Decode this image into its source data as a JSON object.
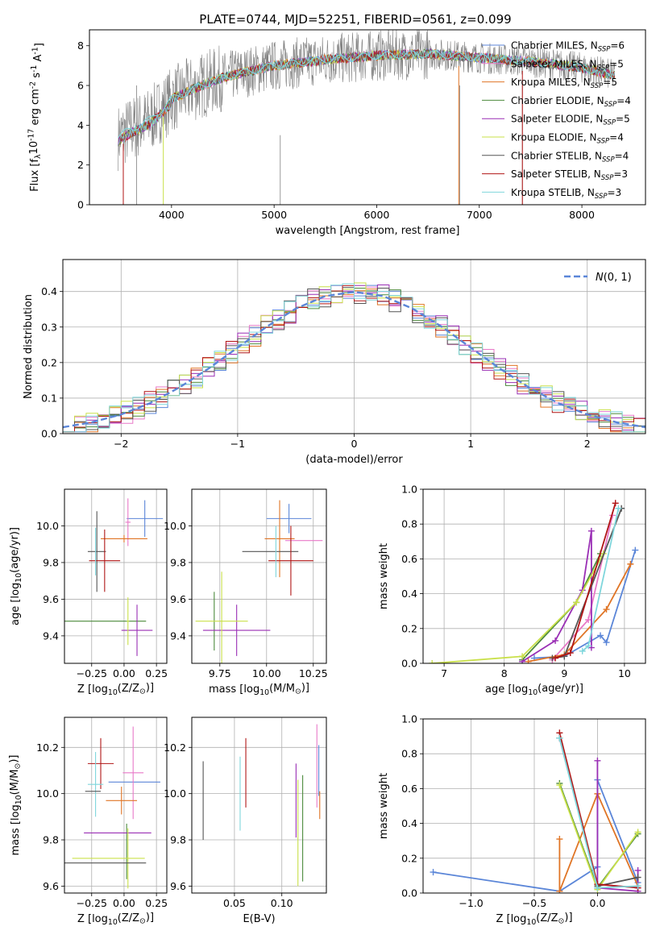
{
  "figure_title": "PLATE=0744, MJD=52251, FIBERID=0561, z=0.099",
  "colors": {
    "Chabrier MILES": "#5b86d8",
    "Salpeter MILES": "#e879c8",
    "Kroupa MILES": "#e07526",
    "Chabrier ELODIE": "#4c8a3c",
    "Salpeter ELODIE": "#9a2fb5",
    "Kroupa ELODIE": "#c9e04a",
    "Chabrier STELIB": "#555555",
    "Salpeter STELIB": "#b01515",
    "Kroupa STELIB": "#7fd6dc",
    "data": "#808080",
    "gauss": "#5b86d8",
    "grid": "#b0b0b0"
  },
  "chart_data": [
    {
      "id": "spectrum",
      "type": "line",
      "title": "PLATE=0744, MJD=52251, FIBERID=0561, z=0.099",
      "xlabel": "wavelength [Angstrom, rest frame]",
      "ylabel": "Flux [f$_\\lambda$10$^{-17}$ erg cm$^{-2}$ s$^{-1}$ A$^{-1}$]",
      "xlim": [
        3200,
        8620
      ],
      "ylim": [
        0,
        8.8
      ],
      "xticks": [
        4000,
        5000,
        6000,
        7000,
        8000
      ],
      "yticks": [
        0,
        2,
        4,
        6,
        8
      ],
      "grid": false,
      "legend": [
        {
          "name": "Chabrier MILES",
          "n": "6"
        },
        {
          "name": "Salpeter MILES",
          "n": "5"
        },
        {
          "name": "Kroupa MILES",
          "n": "5"
        },
        {
          "name": "Chabrier ELODIE",
          "n": "4"
        },
        {
          "name": "Salpeter ELODIE",
          "n": "5"
        },
        {
          "name": "Kroupa ELODIE",
          "n": "4"
        },
        {
          "name": "Chabrier STELIB",
          "n": "4"
        },
        {
          "name": "Salpeter STELIB",
          "n": "3"
        },
        {
          "name": "Kroupa STELIB",
          "n": "3"
        }
      ],
      "continuum": {
        "x": [
          3480,
          3600,
          3800,
          4000,
          4200,
          4500,
          5000,
          5500,
          6000,
          6500,
          7000,
          7500,
          8000,
          8320
        ],
        "y": [
          3.4,
          3.8,
          4.3,
          5.3,
          5.8,
          6.4,
          7.0,
          7.3,
          7.5,
          7.6,
          7.4,
          7.2,
          6.9,
          6.5
        ]
      }
    },
    {
      "id": "residuals",
      "type": "line",
      "xlabel": "(data-model)/error",
      "ylabel": "Normed distribution",
      "xlim": [
        -2.5,
        2.5
      ],
      "ylim": [
        0,
        0.49
      ],
      "xticks": [
        -2,
        -1,
        0,
        1,
        2
      ],
      "yticks": [
        0.0,
        0.1,
        0.2,
        0.3,
        0.4
      ],
      "grid": true,
      "legend": [
        {
          "name": "N(0,1)"
        }
      ],
      "bin_centers": [
        -2.45,
        -2.35,
        -2.25,
        -2.15,
        -2.05,
        -1.95,
        -1.85,
        -1.75,
        -1.65,
        -1.55,
        -1.45,
        -1.35,
        -1.25,
        -1.15,
        -1.05,
        -0.95,
        -0.85,
        -0.75,
        -0.65,
        -0.55,
        -0.45,
        -0.35,
        -0.25,
        -0.15,
        -0.05,
        0.05,
        0.15,
        0.25,
        0.35,
        0.45,
        0.55,
        0.65,
        0.75,
        0.85,
        0.95,
        1.05,
        1.15,
        1.25,
        1.35,
        1.45,
        1.55,
        1.65,
        1.75,
        1.85,
        1.95,
        2.05,
        2.15,
        2.25,
        2.35,
        2.45
      ],
      "gauss_x": [
        -2.5,
        -2.25,
        -2.0,
        -1.75,
        -1.5,
        -1.25,
        -1.0,
        -0.75,
        -0.5,
        -0.25,
        0.0,
        0.25,
        0.5,
        0.75,
        1.0,
        1.25,
        1.5,
        1.75,
        2.0,
        2.25,
        2.5
      ],
      "gauss_y": [
        0.018,
        0.032,
        0.054,
        0.086,
        0.13,
        0.183,
        0.242,
        0.301,
        0.352,
        0.387,
        0.399,
        0.387,
        0.352,
        0.301,
        0.242,
        0.183,
        0.13,
        0.086,
        0.054,
        0.032,
        0.018
      ]
    },
    {
      "id": "age_vs_Z",
      "type": "scatter",
      "xlabel": "Z [log$_{10}$(Z/Z$_\\odot$)]",
      "ylabel": "age  [log$_{10}$(age/yr)]",
      "xlim": [
        -0.46,
        0.33
      ],
      "ylim": [
        9.25,
        10.2
      ],
      "xticks": [
        -0.25,
        0.0,
        0.25
      ],
      "xticklabels": [
        "−0.25",
        "0.00",
        "0.25"
      ],
      "yticks": [
        9.4,
        9.6,
        9.8,
        10.0
      ],
      "grid": true,
      "points": [
        {
          "s": "Chabrier MILES",
          "x": 0.16,
          "y": 10.04,
          "xe": 0.14,
          "ye": 0.1
        },
        {
          "s": "Salpeter MILES",
          "x": 0.03,
          "y": 10.02,
          "xe": 0.02,
          "ye": 0.13
        },
        {
          "s": "Kroupa MILES",
          "x": 0.0,
          "y": 9.93,
          "xe": 0.18,
          "ye": 0.02
        },
        {
          "s": "Chabrier ELODIE",
          "x": -0.17,
          "y": 9.48,
          "xe": 0.34,
          "ye": 0.0
        },
        {
          "s": "Salpeter ELODIE",
          "x": 0.1,
          "y": 9.43,
          "xe": 0.12,
          "ye": 0.14
        },
        {
          "s": "Kroupa ELODIE",
          "x": 0.03,
          "y": 9.48,
          "xe": 0.01,
          "ye": 0.13
        },
        {
          "s": "Chabrier STELIB",
          "x": -0.21,
          "y": 9.86,
          "xe": 0.07,
          "ye": 0.22
        },
        {
          "s": "Salpeter STELIB",
          "x": -0.15,
          "y": 9.81,
          "xe": 0.12,
          "ye": 0.17
        },
        {
          "s": "Kroupa STELIB",
          "x": -0.22,
          "y": 9.86,
          "xe": 0.0,
          "ye": 0.13
        }
      ]
    },
    {
      "id": "age_vs_mass",
      "type": "scatter",
      "xlabel": "mass [log$_{10}$(M/M$_\\odot$)]",
      "ylabel": "",
      "xlim": [
        9.6,
        10.32
      ],
      "ylim": [
        9.25,
        10.2
      ],
      "xticks": [
        9.75,
        10.0,
        10.25
      ],
      "xticklabels": [
        "9.75",
        "10.00",
        "10.25"
      ],
      "yticks": [
        9.4,
        9.6,
        9.8,
        10.0
      ],
      "grid": true,
      "points": [
        {
          "s": "Chabrier MILES",
          "x": 10.12,
          "y": 10.04,
          "xe": 0.12,
          "ye": 0.08
        },
        {
          "s": "Salpeter MILES",
          "x": 10.2,
          "y": 9.92,
          "xe": 0.1,
          "ye": 0.0
        },
        {
          "s": "Kroupa MILES",
          "x": 10.07,
          "y": 9.93,
          "xe": 0.08,
          "ye": 0.21
        },
        {
          "s": "Chabrier ELODIE",
          "x": 9.72,
          "y": 9.48,
          "xe": 0.0,
          "ye": 0.16
        },
        {
          "s": "Salpeter ELODIE",
          "x": 9.84,
          "y": 9.43,
          "xe": 0.18,
          "ye": 0.14
        },
        {
          "s": "Kroupa ELODIE",
          "x": 9.76,
          "y": 9.48,
          "xe": 0.14,
          "ye": 0.27
        },
        {
          "s": "Chabrier STELIB",
          "x": 10.02,
          "y": 9.86,
          "xe": 0.15,
          "ye": 0.0
        },
        {
          "s": "Salpeter STELIB",
          "x": 10.13,
          "y": 9.81,
          "xe": 0.12,
          "ye": 0.19
        },
        {
          "s": "Kroupa STELIB",
          "x": 10.05,
          "y": 9.86,
          "xe": 0.0,
          "ye": 0.14
        }
      ]
    },
    {
      "id": "weight_vs_age",
      "type": "line",
      "xlabel": "age  [log$_{10}$(age/yr)]",
      "ylabel": "mass weight",
      "xlim": [
        6.65,
        10.35
      ],
      "ylim": [
        0,
        1.0
      ],
      "xticks": [
        7,
        8,
        9,
        10
      ],
      "yticks": [
        0.0,
        0.2,
        0.4,
        0.6,
        0.8,
        1.0
      ],
      "grid": true,
      "series": [
        {
          "s": "Chabrier MILES",
          "x": [
            8.5,
            9.0,
            9.6,
            9.7,
            10.18
          ],
          "y": [
            0.03,
            0.04,
            0.16,
            0.12,
            0.65
          ]
        },
        {
          "s": "Salpeter MILES",
          "x": [
            8.8,
            9.4,
            9.8
          ],
          "y": [
            0.02,
            0.25,
            0.85
          ]
        },
        {
          "s": "Kroupa MILES",
          "x": [
            8.4,
            9.0,
            9.7,
            10.1
          ],
          "y": [
            0.01,
            0.05,
            0.31,
            0.57
          ]
        },
        {
          "s": "Chabrier ELODIE",
          "x": [
            8.3,
            9.2,
            9.6
          ],
          "y": [
            0.02,
            0.35,
            0.63
          ]
        },
        {
          "s": "Salpeter ELODIE",
          "x": [
            8.3,
            8.85,
            9.3,
            9.45,
            9.45
          ],
          "y": [
            0.01,
            0.13,
            0.42,
            0.76,
            0.09
          ]
        },
        {
          "s": "Kroupa ELODIE",
          "x": [
            6.8,
            8.3,
            9.2,
            9.65
          ],
          "y": [
            0.0,
            0.04,
            0.35,
            0.63
          ]
        },
        {
          "s": "Chabrier STELIB",
          "x": [
            8.8,
            9.0,
            9.95
          ],
          "y": [
            0.03,
            0.04,
            0.89
          ]
        },
        {
          "s": "Salpeter STELIB",
          "x": [
            8.85,
            9.1,
            9.85
          ],
          "y": [
            0.03,
            0.06,
            0.92
          ]
        },
        {
          "s": "Kroupa STELIB",
          "x": [
            9.3,
            9.4,
            9.9
          ],
          "y": [
            0.07,
            0.1,
            0.89
          ]
        }
      ]
    },
    {
      "id": "mass_vs_Z",
      "type": "scatter",
      "xlabel": "Z [log$_{10}$(Z/Z$_\\odot$)]",
      "ylabel": "mass [log$_{10}$(M/M$_\\odot$)]",
      "xlim": [
        -0.46,
        0.33
      ],
      "ylim": [
        9.57,
        10.33
      ],
      "xticks": [
        -0.25,
        0.0,
        0.25
      ],
      "xticklabels": [
        "−0.25",
        "0.00",
        "0.25"
      ],
      "yticks": [
        9.6,
        9.8,
        10.0,
        10.2
      ],
      "grid": true,
      "points": [
        {
          "s": "Chabrier MILES",
          "x": 0.08,
          "y": 10.05,
          "xe": 0.2,
          "ye": 0.0
        },
        {
          "s": "Salpeter MILES",
          "x": 0.07,
          "y": 10.09,
          "xe": 0.08,
          "ye": 0.2
        },
        {
          "s": "Kroupa MILES",
          "x": -0.02,
          "y": 9.97,
          "xe": 0.12,
          "ye": 0.06
        },
        {
          "s": "Chabrier ELODIE",
          "x": 0.02,
          "y": 9.75,
          "xe": 0.0,
          "ye": 0.12
        },
        {
          "s": "Salpeter ELODIE",
          "x": -0.05,
          "y": 9.83,
          "xe": 0.26,
          "ye": 0.0
        },
        {
          "s": "Kroupa ELODIE",
          "x": 0.03,
          "y": 9.72,
          "xe": 0.0,
          "ye": 0.13
        },
        {
          "s": "Chabrier STELIB",
          "x": -0.17,
          "y": 9.7,
          "xe": 0.34,
          "ye": 0.0
        },
        {
          "s": "Salpeter STELIB",
          "x": -0.18,
          "y": 10.13,
          "xe": 0.1,
          "ye": 0.11
        },
        {
          "s": "Kroupa STELIB",
          "x": -0.22,
          "y": 10.04,
          "xe": 0.06,
          "ye": 0.14
        }
      ],
      "extra_segments": [
        {
          "s": "Chabrier STELIB",
          "x1": -0.3,
          "y1": 10.01,
          "x2": -0.18,
          "y2": 10.01
        },
        {
          "s": "Kroupa ELODIE",
          "x1": -0.4,
          "y1": 9.72,
          "x2": 0.16,
          "y2": 9.72
        }
      ]
    },
    {
      "id": "mass_vs_ebv",
      "type": "scatter",
      "xlabel": "E(B-V)",
      "ylabel": "",
      "xlim": [
        0.005,
        0.147
      ],
      "ylim": [
        9.57,
        10.33
      ],
      "xticks": [
        0.05,
        0.1
      ],
      "xticklabels": [
        "0.05",
        "0.10"
      ],
      "yticks": [
        9.6,
        9.8,
        10.0,
        10.2
      ],
      "grid": true,
      "points": [
        {
          "s": "Chabrier STELIB",
          "x": 0.017,
          "y": 9.97,
          "xe": 0,
          "ye": 0.17
        },
        {
          "s": "Kroupa STELIB",
          "x": 0.056,
          "y": 10.0,
          "xe": 0,
          "ye": 0.16
        },
        {
          "s": "Salpeter STELIB",
          "x": 0.062,
          "y": 10.09,
          "xe": 0,
          "ye": 0.15
        },
        {
          "s": "Salpeter ELODIE",
          "x": 0.115,
          "y": 9.97,
          "xe": 0,
          "ye": 0.16
        },
        {
          "s": "Kroupa ELODIE",
          "x": 0.117,
          "y": 9.83,
          "xe": 0,
          "ye": 0.23
        },
        {
          "s": "Chabrier ELODIE",
          "x": 0.122,
          "y": 9.85,
          "xe": 0,
          "ye": 0.23
        },
        {
          "s": "Salpeter MILES",
          "x": 0.137,
          "y": 10.12,
          "xe": 0,
          "ye": 0.18
        },
        {
          "s": "Chabrier MILES",
          "x": 0.139,
          "y": 10.1,
          "xe": 0,
          "ye": 0.11
        },
        {
          "s": "Kroupa MILES",
          "x": 0.14,
          "y": 9.95,
          "xe": 0,
          "ye": 0.06
        }
      ]
    },
    {
      "id": "weight_vs_Z",
      "type": "line",
      "xlabel": "Z [log$_{10}$(Z/Z$_\\odot$)]",
      "ylabel": "mass weight",
      "xlim": [
        -1.38,
        0.38
      ],
      "ylim": [
        0,
        1.0
      ],
      "xticks": [
        -1.0,
        -0.5,
        0.0
      ],
      "xticklabels": [
        "−1.0",
        "−0.5",
        "0.0"
      ],
      "yticks": [
        0.0,
        0.2,
        0.4,
        0.6,
        0.8,
        1.0
      ],
      "grid": true,
      "series": [
        {
          "s": "Chabrier MILES",
          "x": [
            -1.3,
            -0.3,
            0.0,
            0.0,
            0.32
          ],
          "y": [
            0.12,
            0.01,
            0.15,
            0.65,
            0.06
          ]
        },
        {
          "s": "Salpeter MILES",
          "x": [
            -0.3,
            0.0,
            0.32
          ],
          "y": [
            0.89,
            0.05,
            0.03
          ]
        },
        {
          "s": "Kroupa MILES",
          "x": [
            -0.3,
            -0.3,
            0.0,
            0.32
          ],
          "y": [
            0.31,
            0.01,
            0.57,
            0.04
          ]
        },
        {
          "s": "Chabrier ELODIE",
          "x": [
            -0.3,
            0.0,
            0.32
          ],
          "y": [
            0.63,
            0.03,
            0.34
          ]
        },
        {
          "s": "Salpeter ELODIE",
          "x": [
            0.0,
            0.0,
            0.32,
            0.32
          ],
          "y": [
            0.76,
            0.03,
            0.01,
            0.13
          ]
        },
        {
          "s": "Kroupa ELODIE",
          "x": [
            -0.3,
            0.0,
            0.32
          ],
          "y": [
            0.62,
            0.02,
            0.35
          ]
        },
        {
          "s": "Chabrier STELIB",
          "x": [
            -0.3,
            0.0,
            0.32
          ],
          "y": [
            0.89,
            0.04,
            0.09
          ]
        },
        {
          "s": "Salpeter STELIB",
          "x": [
            -0.3,
            0.0,
            0.32
          ],
          "y": [
            0.92,
            0.05,
            0.03
          ]
        },
        {
          "s": "Kroupa STELIB",
          "x": [
            -0.3,
            0.0,
            0.32
          ],
          "y": [
            0.89,
            0.03,
            0.04
          ]
        }
      ]
    }
  ]
}
